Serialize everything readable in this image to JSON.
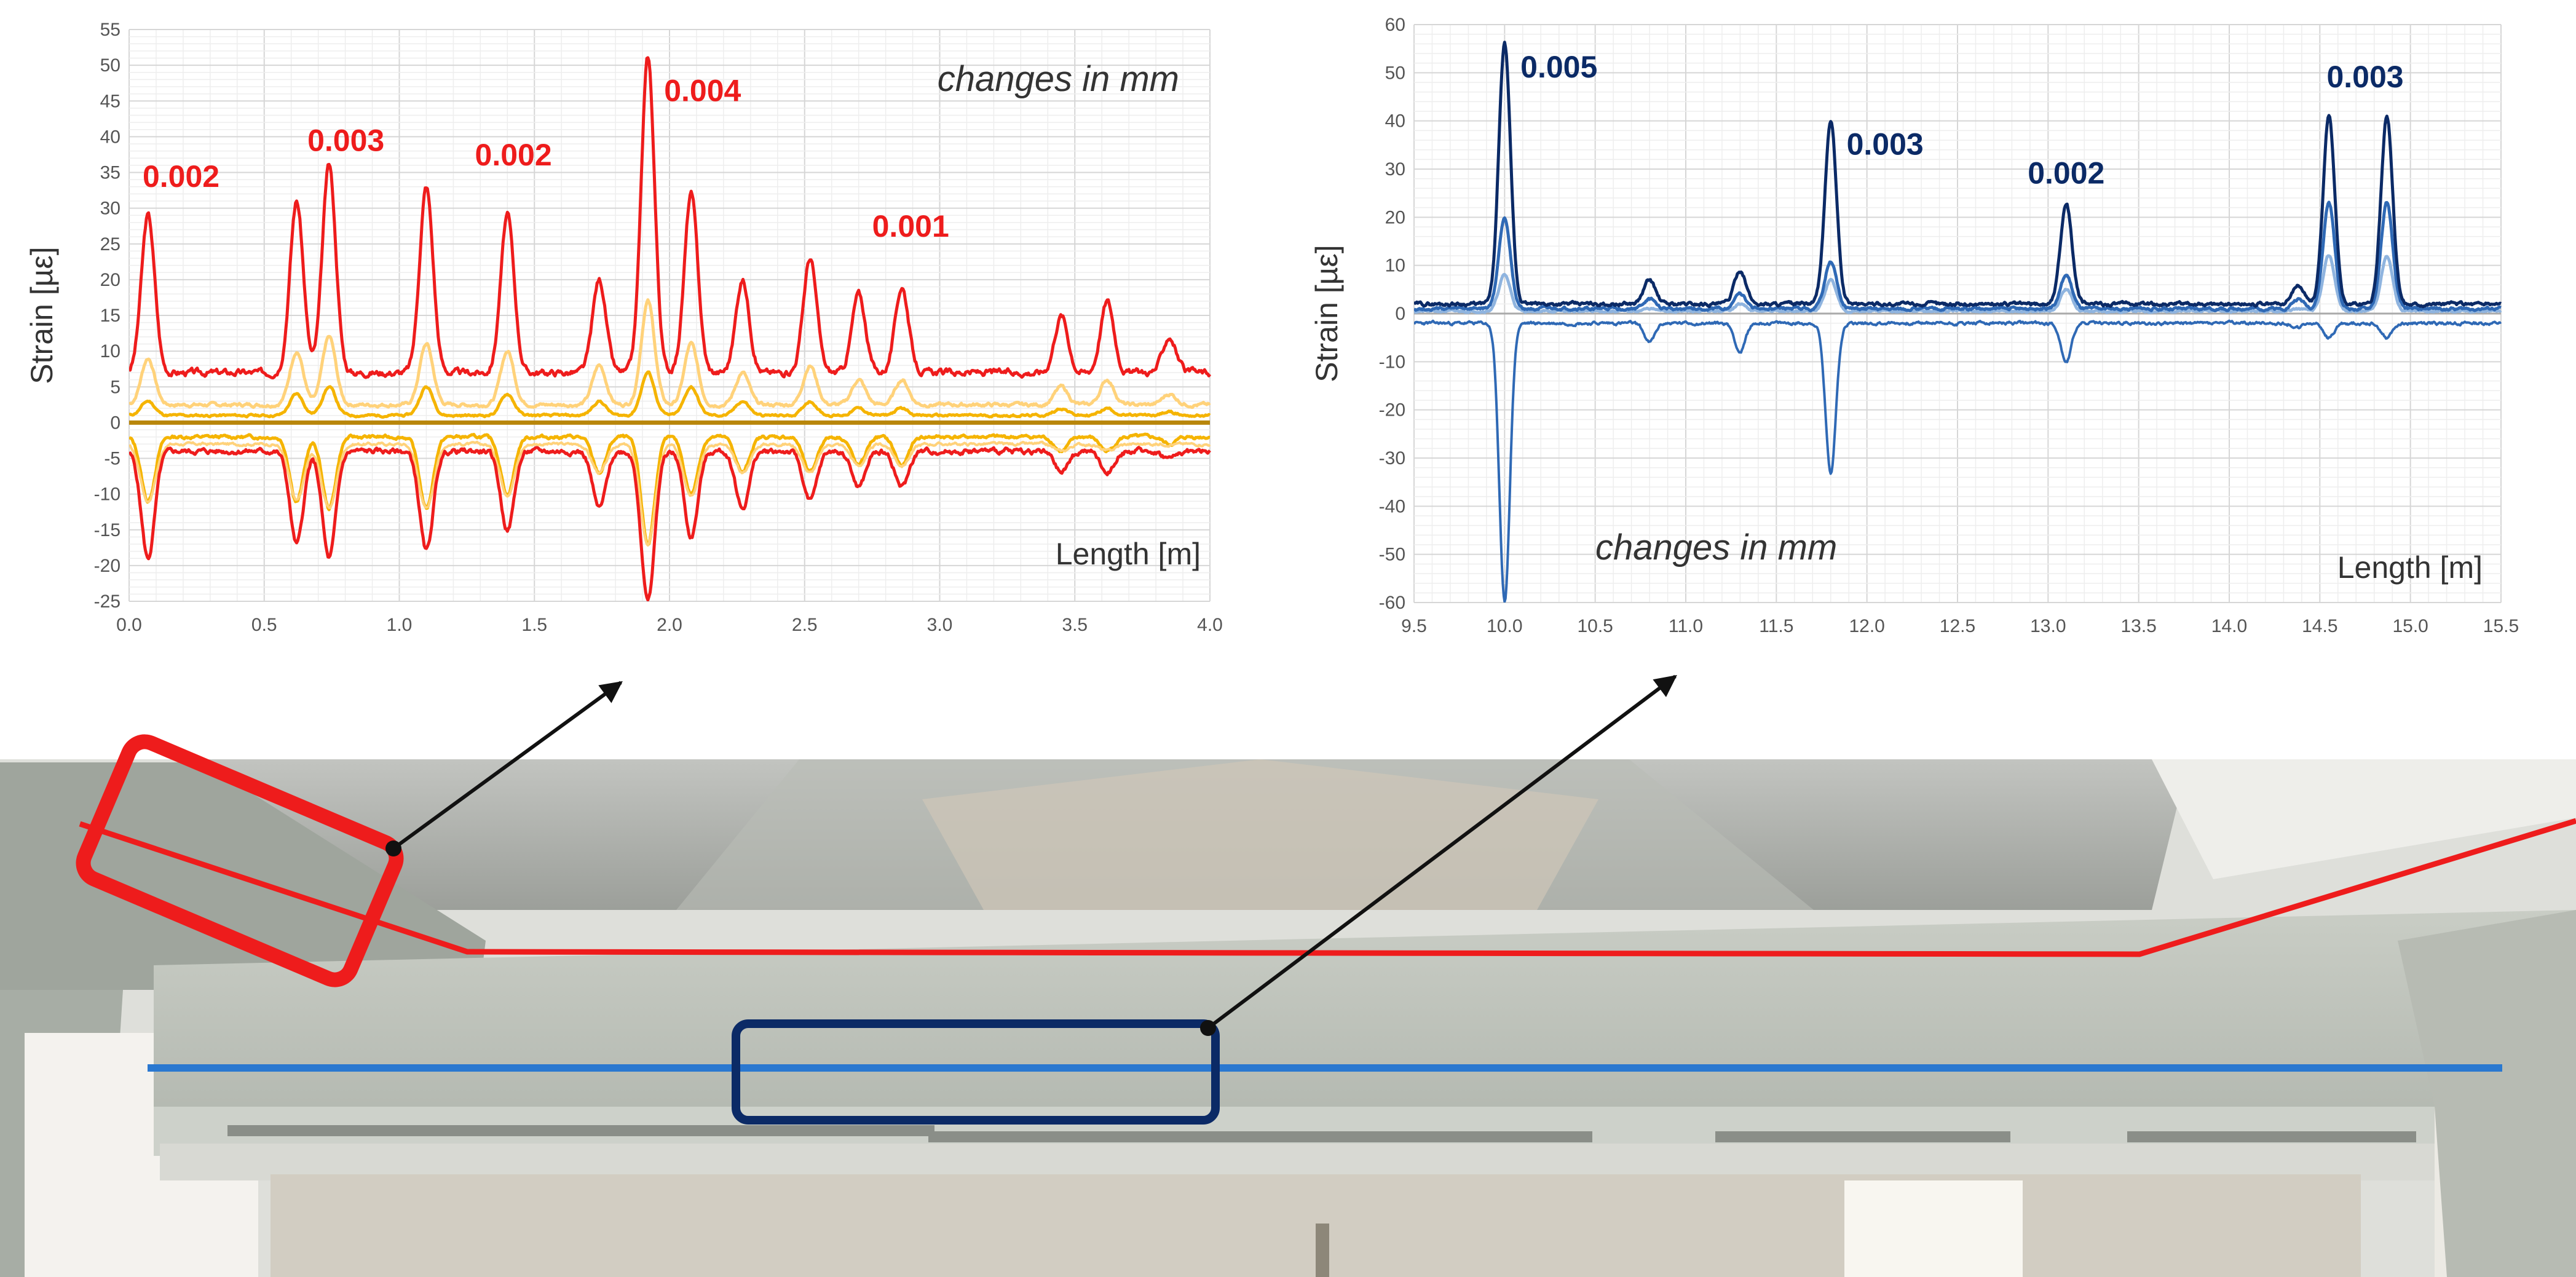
{
  "colors": {
    "red": "#ee1c1c",
    "yellow_light": "#ffd27a",
    "yellow": "#f5b400",
    "olive": "#b8860b",
    "navy": "#0b2a66",
    "blue_mid": "#2f69b5",
    "blue_light": "#8fb4df",
    "blue_line": "#2a78d0",
    "arrow": "#111111"
  },
  "chart_data": [
    {
      "type": "line",
      "xlabel": "Length [m]",
      "ylabel": "Strain [µε]",
      "xlim": [
        0.0,
        4.0
      ],
      "ylim": [
        -25,
        55
      ],
      "x_ticks": [
        "0.0",
        "0.5",
        "1.0",
        "1.5",
        "2.0",
        "2.5",
        "3.0",
        "3.5",
        "4.0"
      ],
      "y_ticks": [
        "-25",
        "-20",
        "-15",
        "-10",
        "-5",
        "0",
        "5",
        "10",
        "15",
        "20",
        "25",
        "30",
        "35",
        "40",
        "45",
        "50",
        "55"
      ],
      "grid": true,
      "note": "changes in mm",
      "annotations": [
        {
          "text": "0.002",
          "x": 0.05,
          "y": 33
        },
        {
          "text": "0.003",
          "x": 0.66,
          "y": 38
        },
        {
          "text": "0.002",
          "x": 1.28,
          "y": 36
        },
        {
          "text": "0.004",
          "x": 1.98,
          "y": 45
        },
        {
          "text": "0.001",
          "x": 2.75,
          "y": 26
        }
      ],
      "base": {
        "upper": 7,
        "upper_light": 2.5,
        "upper_yellow": 1.0,
        "lower": -4,
        "lower_yellow": -2
      },
      "peaks": [
        {
          "x": 0.07,
          "red": 29,
          "yl": 9,
          "y": 3,
          "neg": -19,
          "ny": -11
        },
        {
          "x": 0.62,
          "red": 31,
          "yl": 10,
          "y": 4,
          "neg": -17,
          "ny": -11
        },
        {
          "x": 0.74,
          "red": 36,
          "yl": 12,
          "y": 5,
          "neg": -19,
          "ny": -12
        },
        {
          "x": 1.1,
          "red": 33,
          "yl": 11,
          "y": 5,
          "neg": -18,
          "ny": -12
        },
        {
          "x": 1.4,
          "red": 29,
          "yl": 10,
          "y": 4,
          "neg": -15,
          "ny": -10
        },
        {
          "x": 1.74,
          "red": 20,
          "yl": 8,
          "y": 3,
          "neg": -12,
          "ny": -7
        },
        {
          "x": 1.92,
          "red": 51,
          "yl": 17,
          "y": 7,
          "neg": -25,
          "ny": -17
        },
        {
          "x": 2.08,
          "red": 32,
          "yl": 11,
          "y": 5,
          "neg": -16,
          "ny": -10
        },
        {
          "x": 2.27,
          "red": 20,
          "yl": 7,
          "y": 3,
          "neg": -12,
          "ny": -7
        },
        {
          "x": 2.52,
          "red": 23,
          "yl": 8,
          "y": 3,
          "neg": -11,
          "ny": -7
        },
        {
          "x": 2.7,
          "red": 18,
          "yl": 6,
          "y": 2,
          "neg": -9,
          "ny": -6
        },
        {
          "x": 2.86,
          "red": 19,
          "yl": 6,
          "y": 2,
          "neg": -9,
          "ny": -6
        },
        {
          "x": 3.45,
          "red": 15,
          "yl": 5,
          "y": 2,
          "neg": -7,
          "ny": -4
        },
        {
          "x": 3.62,
          "red": 17,
          "yl": 6,
          "y": 2,
          "neg": -7,
          "ny": -4
        },
        {
          "x": 3.85,
          "red": 12,
          "yl": 4,
          "y": 1.5,
          "neg": -5,
          "ny": -3
        }
      ]
    },
    {
      "type": "line",
      "xlabel": "Length [m]",
      "ylabel": "Strain [µε]",
      "xlim": [
        9.5,
        15.5
      ],
      "ylim": [
        -60,
        60
      ],
      "x_ticks": [
        "9.5",
        "10.0",
        "10.5",
        "11.0",
        "11.5",
        "12.0",
        "12.5",
        "13.0",
        "13.5",
        "14.0",
        "14.5",
        "15.0",
        "15.5"
      ],
      "y_ticks": [
        "-60",
        "-50",
        "-40",
        "-30",
        "-20",
        "-10",
        "0",
        "10",
        "20",
        "30",
        "40",
        "50",
        "60"
      ],
      "grid": true,
      "note": "changes in mm",
      "annotations": [
        {
          "text": "0.005",
          "x": 10.3,
          "y": 49
        },
        {
          "text": "0.003",
          "x": 12.1,
          "y": 33
        },
        {
          "text": "0.002",
          "x": 13.1,
          "y": 27
        },
        {
          "text": "0.003",
          "x": 14.75,
          "y": 47
        }
      ],
      "peaks": [
        {
          "x": 10.0,
          "navy": 56,
          "mid": 20,
          "light": 8,
          "neg": -60
        },
        {
          "x": 10.8,
          "navy": 7,
          "mid": 3,
          "light": 1,
          "neg": -6
        },
        {
          "x": 11.3,
          "navy": 9,
          "mid": 4,
          "light": 2,
          "neg": -8
        },
        {
          "x": 11.8,
          "navy": 40,
          "mid": 11,
          "light": 7,
          "neg": -33
        },
        {
          "x": 13.1,
          "navy": 23,
          "mid": 8,
          "light": 5,
          "neg": -10
        },
        {
          "x": 14.38,
          "navy": 6,
          "mid": 3,
          "light": 1,
          "neg": -3
        },
        {
          "x": 14.55,
          "navy": 41,
          "mid": 23,
          "light": 12,
          "neg": -5
        },
        {
          "x": 14.87,
          "navy": 41,
          "mid": 23,
          "light": 12,
          "neg": -5
        }
      ]
    }
  ]
}
